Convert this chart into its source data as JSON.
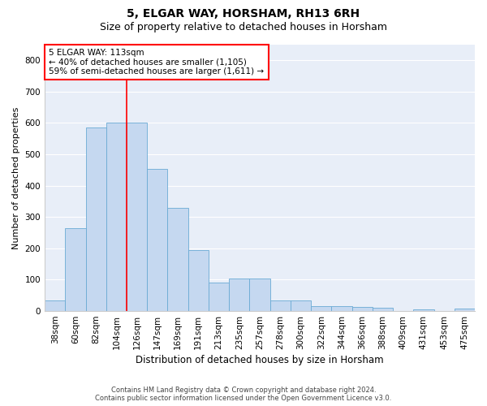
{
  "title": "5, ELGAR WAY, HORSHAM, RH13 6RH",
  "subtitle": "Size of property relative to detached houses in Horsham",
  "xlabel": "Distribution of detached houses by size in Horsham",
  "ylabel": "Number of detached properties",
  "bar_color": "#c5d8f0",
  "bar_edge_color": "#6aaad4",
  "background_color": "#e8eef8",
  "grid_color": "#ffffff",
  "categories": [
    "38sqm",
    "60sqm",
    "82sqm",
    "104sqm",
    "126sqm",
    "147sqm",
    "169sqm",
    "191sqm",
    "213sqm",
    "235sqm",
    "257sqm",
    "278sqm",
    "300sqm",
    "322sqm",
    "344sqm",
    "366sqm",
    "388sqm",
    "409sqm",
    "431sqm",
    "453sqm",
    "475sqm"
  ],
  "values": [
    35,
    265,
    585,
    600,
    600,
    453,
    330,
    195,
    90,
    103,
    103,
    35,
    33,
    17,
    17,
    13,
    10,
    0,
    6,
    0,
    7
  ],
  "annotation_text": "5 ELGAR WAY: 113sqm\n← 40% of detached houses are smaller (1,105)\n59% of semi-detached houses are larger (1,611) →",
  "annotation_box_color": "white",
  "annotation_box_edge_color": "red",
  "vline_x_index": 3.5,
  "vline_color": "red",
  "footer_line1": "Contains HM Land Registry data © Crown copyright and database right 2024.",
  "footer_line2": "Contains public sector information licensed under the Open Government Licence v3.0.",
  "ylim": [
    0,
    850
  ],
  "yticks": [
    0,
    100,
    200,
    300,
    400,
    500,
    600,
    700,
    800
  ],
  "title_fontsize": 10,
  "subtitle_fontsize": 9,
  "xlabel_fontsize": 8.5,
  "ylabel_fontsize": 8,
  "annotation_fontsize": 7.5,
  "tick_fontsize": 7.5,
  "footer_fontsize": 6
}
